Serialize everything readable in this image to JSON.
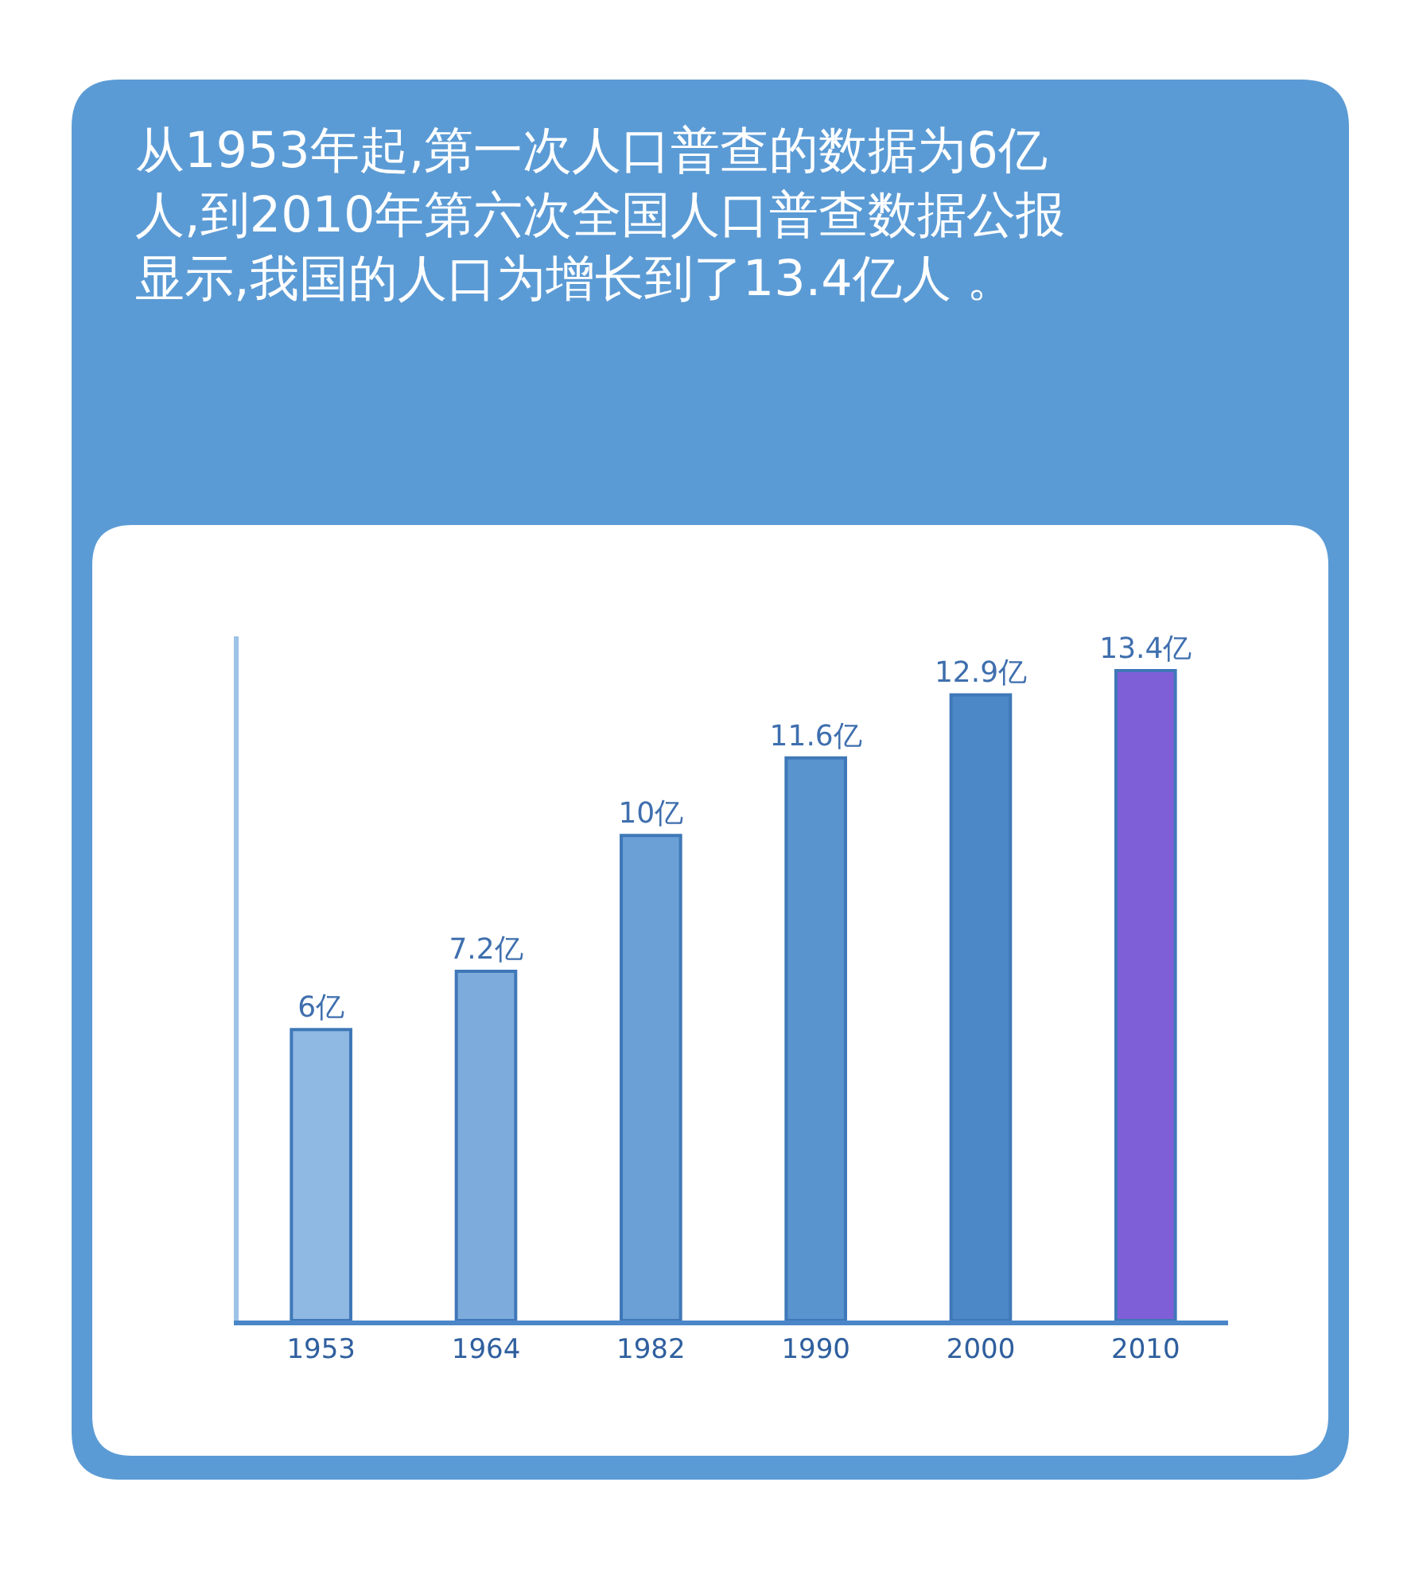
{
  "chart_data": {
    "type": "bar",
    "title": "从1953年起,第一次人口普查的数据为6亿人,到2010年第六次全国人口普查数据公报显示,我国的人口为增长到了13.4亿人 。",
    "categories": [
      "1953",
      "1964",
      "1982",
      "1990",
      "2000",
      "2010"
    ],
    "values": [
      6,
      7.2,
      10,
      11.6,
      12.9,
      13.4
    ],
    "value_labels": [
      "6亿",
      "7.2亿",
      "10亿",
      "11.6亿",
      "12.9亿",
      "13.4亿"
    ],
    "colors": [
      "#8fb8e2",
      "#7dacdc",
      "#6aa0d6",
      "#5a94cf",
      "#4c88c8",
      "#7e5fd8"
    ],
    "legend": false
  }
}
